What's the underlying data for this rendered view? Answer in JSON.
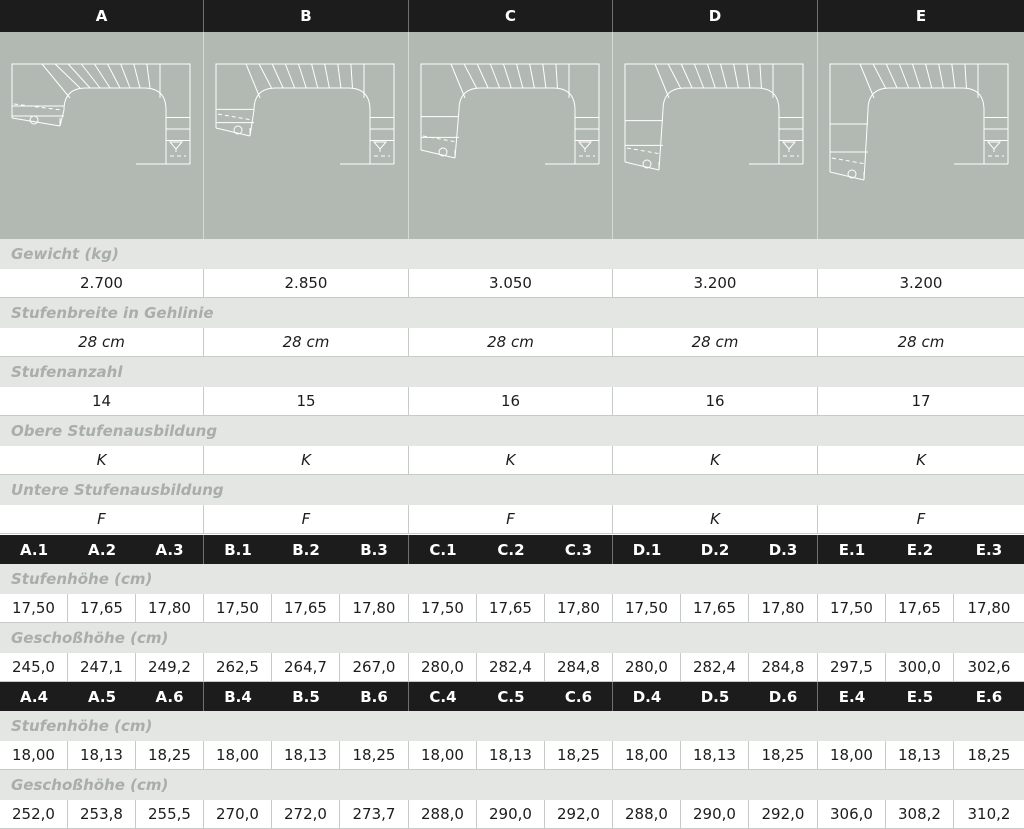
{
  "variants": [
    "A",
    "B",
    "C",
    "D",
    "E"
  ],
  "sections": [
    {
      "label": "Gewicht (kg)",
      "values": [
        "2.700",
        "2.850",
        "3.050",
        "3.200",
        "3.200"
      ],
      "italic": false
    },
    {
      "label": "Stufenbreite in Gehlinie",
      "values": [
        "28 cm",
        "28 cm",
        "28 cm",
        "28 cm",
        "28 cm"
      ],
      "italic": true
    },
    {
      "label": "Stufenanzahl",
      "values": [
        "14",
        "15",
        "16",
        "16",
        "17"
      ],
      "italic": false
    },
    {
      "label": "Obere Stufenausbildung",
      "values": [
        "K",
        "K",
        "K",
        "K",
        "K"
      ],
      "italic": true
    },
    {
      "label": "Untere Stufenausbildung",
      "values": [
        "F",
        "F",
        "F",
        "K",
        "F"
      ],
      "italic": true
    }
  ],
  "subgroups": [
    {
      "codes": [
        "A.1",
        "A.2",
        "A.3",
        "B.1",
        "B.2",
        "B.3",
        "C.1",
        "C.2",
        "C.3",
        "D.1",
        "D.2",
        "D.3",
        "E.1",
        "E.2",
        "E.3"
      ],
      "rows": [
        {
          "label": "Stufenhöhe (cm)",
          "values": [
            "17,50",
            "17,65",
            "17,80",
            "17,50",
            "17,65",
            "17,80",
            "17,50",
            "17,65",
            "17,80",
            "17,50",
            "17,65",
            "17,80",
            "17,50",
            "17,65",
            "17,80"
          ]
        },
        {
          "label": "Geschoßhöhe (cm)",
          "values": [
            "245,0",
            "247,1",
            "249,2",
            "262,5",
            "264,7",
            "267,0",
            "280,0",
            "282,4",
            "284,8",
            "280,0",
            "282,4",
            "284,8",
            "297,5",
            "300,0",
            "302,6"
          ]
        }
      ]
    },
    {
      "codes": [
        "A.4",
        "A.5",
        "A.6",
        "B.4",
        "B.5",
        "B.6",
        "C.4",
        "C.5",
        "C.6",
        "D.4",
        "D.5",
        "D.6",
        "E.4",
        "E.5",
        "E.6"
      ],
      "rows": [
        {
          "label": "Stufenhöhe (cm)",
          "values": [
            "18,00",
            "18,13",
            "18,25",
            "18,00",
            "18,13",
            "18,25",
            "18,00",
            "18,13",
            "18,25",
            "18,00",
            "18,13",
            "18,25",
            "18,00",
            "18,13",
            "18,25"
          ]
        },
        {
          "label": "Geschoßhöhe (cm)",
          "values": [
            "252,0",
            "253,8",
            "255,5",
            "270,0",
            "272,0",
            "273,7",
            "288,0",
            "290,0",
            "292,0",
            "288,0",
            "290,0",
            "292,0",
            "306,0",
            "308,2",
            "310,2"
          ]
        }
      ]
    }
  ]
}
